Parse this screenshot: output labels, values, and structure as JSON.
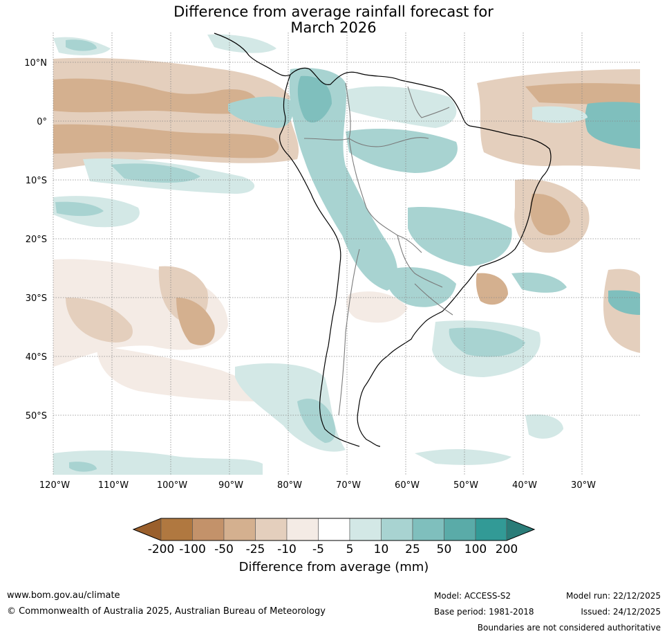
{
  "title": {
    "line1": "Difference from average rainfall forecast for",
    "line2": "March 2026"
  },
  "map": {
    "lat_labels": [
      "10°N",
      "0°",
      "10°S",
      "20°S",
      "30°S",
      "40°S",
      "50°S"
    ],
    "lon_labels": [
      "120°W",
      "110°W",
      "100°W",
      "90°W",
      "80°W",
      "70°W",
      "60°W",
      "50°W",
      "40°W",
      "30°W"
    ],
    "region": "South America and surrounding oceans"
  },
  "legend": {
    "tick_labels": [
      "-200",
      "-100",
      "-50",
      "-25",
      "-10",
      "-5",
      "5",
      "10",
      "25",
      "50",
      "100",
      "200"
    ],
    "colors": [
      "#9a5f2c",
      "#b07840",
      "#c3926a",
      "#d4b08f",
      "#e4cfbd",
      "#f4ebe5",
      "#ffffff",
      "#d3e8e6",
      "#a8d3d1",
      "#7fbfbd",
      "#5aaba8",
      "#329a96",
      "#2a7c78"
    ],
    "axis_label": "Difference from average (mm)"
  },
  "footer": {
    "url": "www.bom.gov.au/climate",
    "copyright": "© Commonwealth of Australia 2025, Australian Bureau of Meteorology",
    "model": "Model: ACCESS-S2",
    "base_period": "Base period: 1981-2018",
    "model_run": "Model run: 22/12/2025",
    "issued": "Issued: 24/12/2025",
    "disclaimer": "Boundaries are not considered authoritative"
  }
}
